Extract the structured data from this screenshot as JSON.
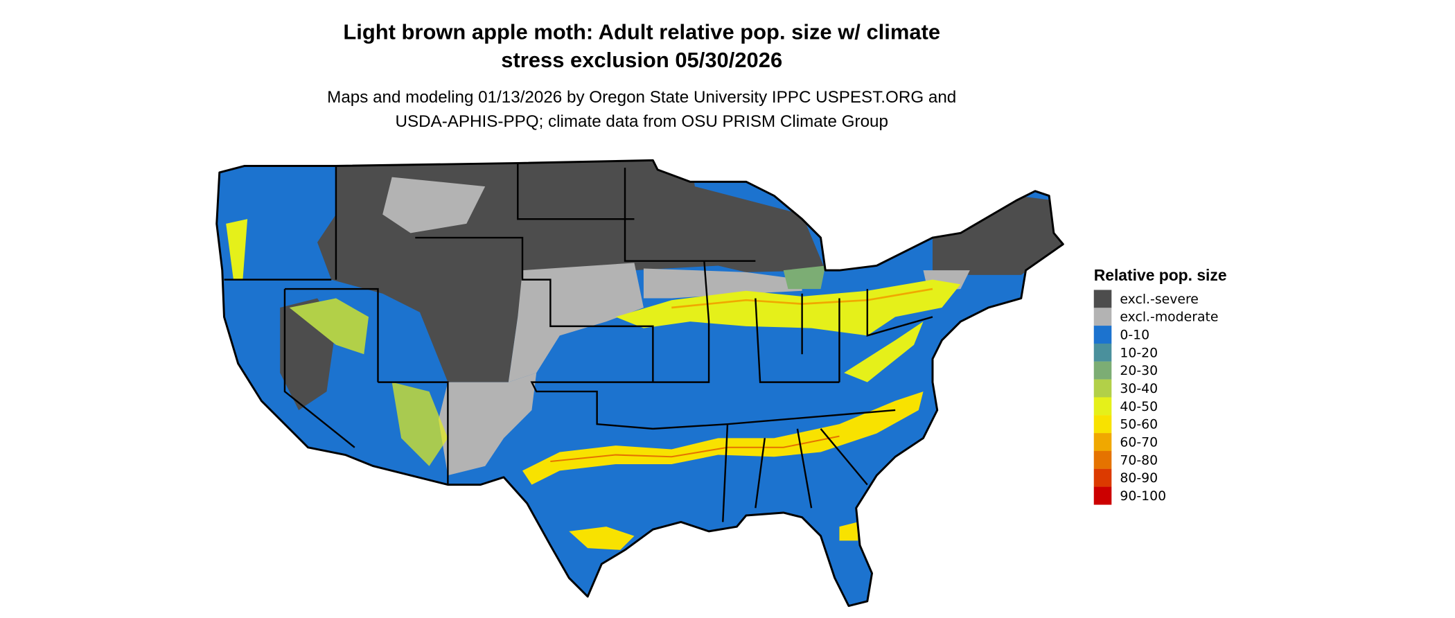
{
  "title_line1": "Light brown apple moth: Adult relative pop. size w/ climate",
  "title_line2": "stress exclusion 05/30/2026",
  "subtitle_line1": "Maps and modeling 01/13/2026 by Oregon State University IPPC USPEST.ORG and",
  "subtitle_line2": "USDA-APHIS-PPQ; climate data from OSU PRISM Climate Group",
  "legend": {
    "title": "Relative pop. size",
    "items": [
      {
        "label": "excl.-severe",
        "color": "#4d4d4d"
      },
      {
        "label": "excl.-moderate",
        "color": "#b3b3b3"
      },
      {
        "label": "0-10",
        "color": "#1c73cf"
      },
      {
        "label": "10-20",
        "color": "#4a909c"
      },
      {
        "label": "20-30",
        "color": "#7cad74"
      },
      {
        "label": "30-40",
        "color": "#b2d048"
      },
      {
        "label": "40-50",
        "color": "#e5f01a"
      },
      {
        "label": "50-60",
        "color": "#f8e200"
      },
      {
        "label": "60-70",
        "color": "#f0a800"
      },
      {
        "label": "70-80",
        "color": "#e57300"
      },
      {
        "label": "80-90",
        "color": "#dc3a00"
      },
      {
        "label": "90-100",
        "color": "#cc0000"
      }
    ]
  }
}
